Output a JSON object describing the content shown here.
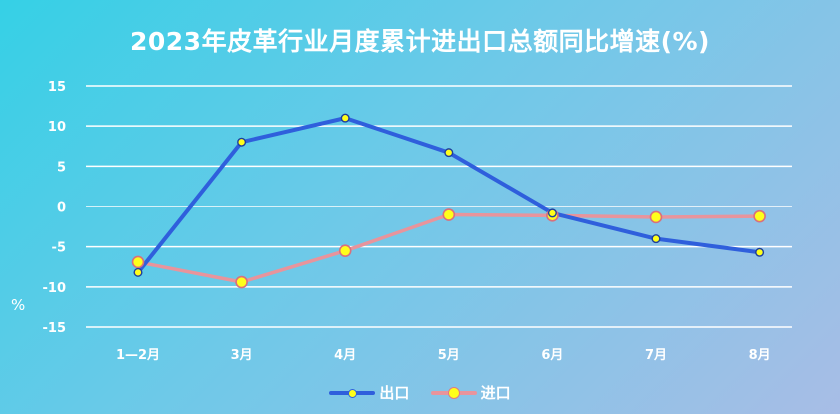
{
  "chart_data": {
    "type": "line",
    "title": "2023年皮革行业月度累计进出口总额同比增速(%)",
    "ylabel": "%",
    "xlabel": "",
    "categories": [
      "1—2月",
      "3月",
      "4月",
      "5月",
      "6月",
      "7月",
      "8月"
    ],
    "ylim": [
      -15,
      15
    ],
    "yticks": [
      15,
      10,
      5,
      0,
      -5,
      -10,
      -15
    ],
    "grid": true,
    "legend_position": "bottom",
    "series": [
      {
        "name": "出口",
        "color": "#2f5fdc",
        "values": [
          -8.2,
          8,
          11,
          6.7,
          -0.8,
          -4,
          -5.7
        ]
      },
      {
        "name": "进口",
        "color": "#e8949c",
        "values": [
          -6.9,
          -9.4,
          -5.5,
          -1,
          -1.1,
          -1.3,
          -1.2
        ]
      }
    ]
  },
  "legend": {
    "export_label": "出口",
    "import_label": "进口"
  },
  "colors": {
    "grid": "#ffffff",
    "marker_fill": "#ffff1a"
  }
}
